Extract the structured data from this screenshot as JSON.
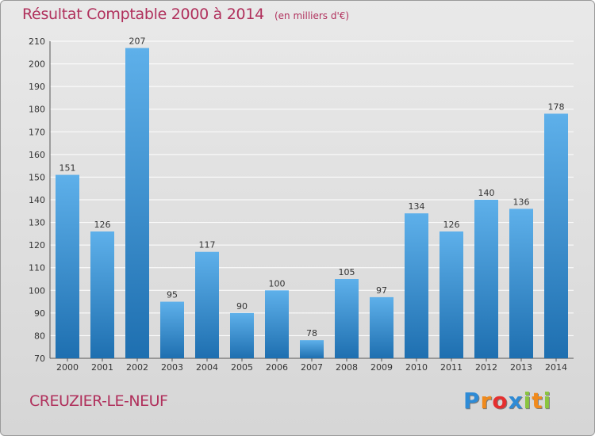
{
  "chart_data": {
    "type": "bar",
    "title": "Résultat Comptable 2000 à 2014",
    "subtitle": "(en milliers d'€)",
    "categories": [
      "2000",
      "2001",
      "2002",
      "2003",
      "2004",
      "2005",
      "2006",
      "2007",
      "2008",
      "2009",
      "2010",
      "2011",
      "2012",
      "2013",
      "2014"
    ],
    "values": [
      151,
      126,
      207,
      95,
      117,
      90,
      100,
      78,
      105,
      97,
      134,
      126,
      140,
      136,
      178
    ],
    "ylim": [
      70,
      210
    ],
    "yticks": [
      70,
      80,
      90,
      100,
      110,
      120,
      130,
      140,
      150,
      160,
      170,
      180,
      190,
      200,
      210
    ],
    "xlabel": "",
    "ylabel": "",
    "grid": true,
    "legend": "none"
  },
  "commune": "CREUZIER-LE-NEUF",
  "logo": {
    "letters": [
      "P",
      "r",
      "o",
      "x",
      "i",
      "t",
      "i"
    ],
    "colors": [
      "#2e8bd6",
      "#f08a1c",
      "#e52f2f",
      "#2e8bd6",
      "#8bc53f",
      "#f08a1c",
      "#8bc53f"
    ]
  },
  "colors": {
    "title": "#b0305c",
    "bar_top": "#5eb0ea",
    "bar_bottom": "#1e6fb0",
    "grid": "#ffffff"
  }
}
